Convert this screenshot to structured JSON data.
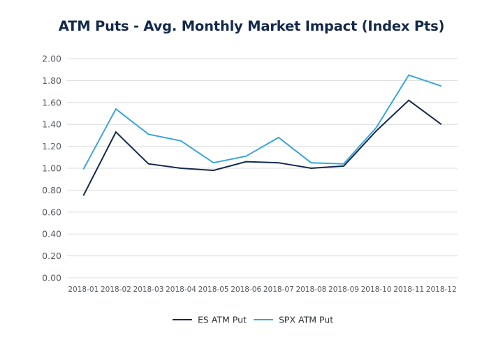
{
  "chart_data": {
    "type": "line",
    "title": "ATM Puts - Avg. Monthly Market Impact (Index Pts)",
    "xlabel": "",
    "ylabel": "",
    "categories": [
      "2018-01",
      "2018-02",
      "2018-03",
      "2018-04",
      "2018-05",
      "2018-06",
      "2018-07",
      "2018-08",
      "2018-09",
      "2018-10",
      "2018-11",
      "2018-12"
    ],
    "ylim": [
      0,
      2.0
    ],
    "yticks": [
      0,
      0.2,
      0.4,
      0.6,
      0.8,
      1.0,
      1.2,
      1.4,
      1.6,
      1.8,
      2.0
    ],
    "ytick_labels": [
      "0.00",
      "0.20",
      "0.40",
      "0.60",
      "0.80",
      "1.00",
      "1.20",
      "1.40",
      "1.60",
      "1.80",
      "2.00"
    ],
    "grid": "horizontal",
    "legend_position": "bottom-center",
    "series": [
      {
        "name": "ES ATM Put",
        "color": "#13294b",
        "values": [
          0.75,
          1.33,
          1.04,
          1.0,
          0.98,
          1.06,
          1.05,
          1.0,
          1.02,
          1.34,
          1.62,
          1.4
        ]
      },
      {
        "name": "SPX ATM Put",
        "color": "#3aa6d8",
        "values": [
          0.99,
          1.54,
          1.31,
          1.25,
          1.05,
          1.11,
          1.28,
          1.05,
          1.04,
          1.37,
          1.85,
          1.75
        ]
      }
    ]
  }
}
